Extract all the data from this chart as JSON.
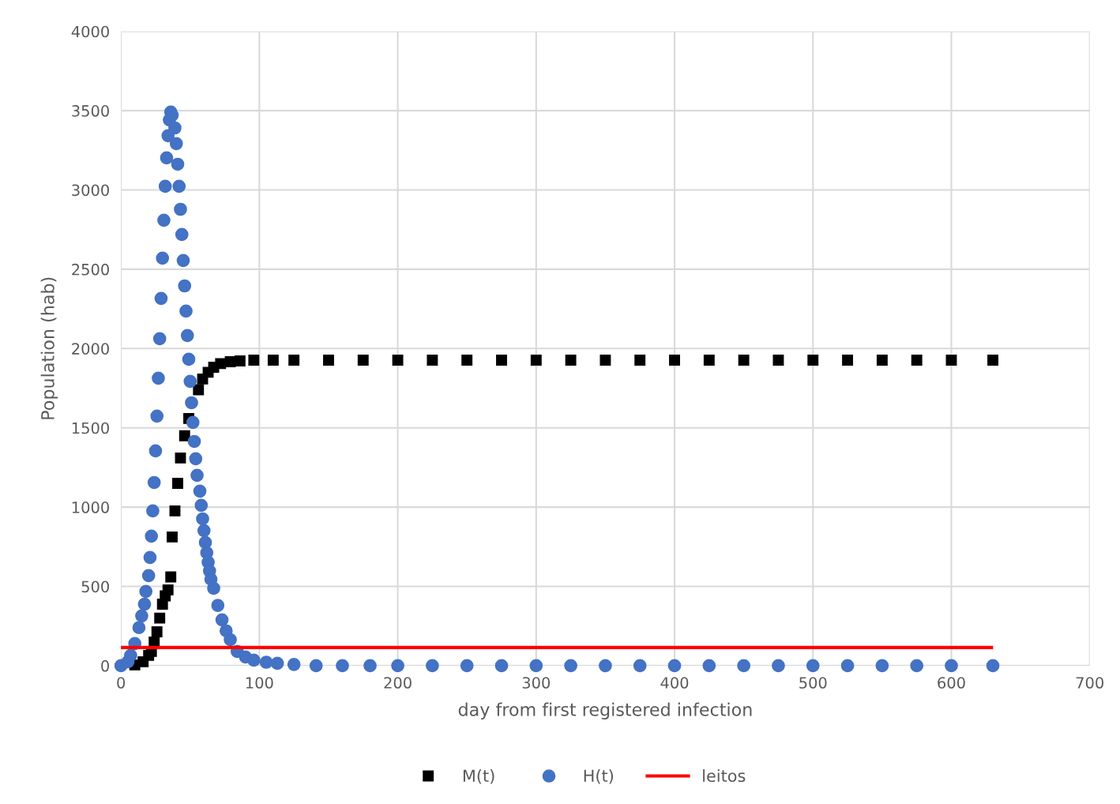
{
  "chart_data": {
    "type": "scatter",
    "xlabel": "day from first registered infection",
    "ylabel": "Population (hab)",
    "xlim": [
      0,
      700
    ],
    "xticks": [
      0,
      100,
      200,
      300,
      400,
      500,
      600,
      700
    ],
    "ylim": [
      0,
      4000
    ],
    "yticks": [
      0,
      500,
      1000,
      1500,
      2000,
      2500,
      3000,
      3500,
      4000
    ],
    "grid": true,
    "legend": "bottom",
    "series": [
      {
        "name": "M(t)",
        "color": "#000000",
        "marker": "square",
        "x": [
          10,
          16,
          20,
          22,
          24,
          26,
          28,
          30,
          32,
          34,
          36,
          37,
          39,
          41,
          43,
          46,
          49,
          53,
          56,
          59,
          63,
          67,
          72,
          79,
          86,
          96,
          110,
          125,
          150,
          175,
          200,
          225,
          250,
          275,
          300,
          325,
          350,
          375,
          400,
          425,
          450,
          475,
          500,
          525,
          550,
          575,
          600,
          630
        ],
        "values": [
          5,
          25,
          65,
          90,
          149,
          214,
          300,
          388,
          440,
          478,
          560,
          812,
          976,
          1150,
          1310,
          1450,
          1559,
          null,
          1740,
          1808,
          1850,
          1882,
          1905,
          1917,
          1922,
          1927,
          1927,
          1927,
          1927,
          1927,
          1927,
          1927,
          1927,
          1927,
          1927,
          1927,
          1927,
          1927,
          1927,
          1927,
          1927,
          1927,
          1927,
          1927,
          1927,
          1927,
          1927,
          1927
        ]
      },
      {
        "name": "H(t)",
        "color": "#4472c4",
        "marker": "circle",
        "x": [
          0,
          5,
          7,
          10,
          13,
          15,
          17,
          18,
          20,
          21,
          22,
          23,
          24,
          25,
          26,
          27,
          28,
          29,
          30,
          31,
          32,
          33,
          34,
          35,
          36,
          37,
          39,
          40,
          41,
          42,
          43,
          44,
          45,
          46,
          47,
          48,
          49,
          50,
          51,
          52,
          53,
          54,
          55,
          57,
          58,
          59,
          60,
          61,
          62,
          63,
          64,
          65,
          67,
          70,
          73,
          76,
          79,
          84,
          90,
          96,
          105,
          113,
          125,
          141,
          160,
          180,
          200,
          225,
          250,
          275,
          300,
          325,
          350,
          375,
          400,
          425,
          450,
          475,
          500,
          525,
          550,
          575,
          600,
          630
        ],
        "values": [
          0,
          25,
          65,
          140,
          240,
          314,
          388,
          468,
          568,
          682,
          817,
          976,
          1155,
          1355,
          1574,
          1813,
          2062,
          2316,
          2570,
          2809,
          3023,
          3202,
          3342,
          3441,
          3491,
          3471,
          3391,
          3292,
          3162,
          3023,
          2878,
          2719,
          2555,
          2395,
          2236,
          2082,
          1932,
          1793,
          1658,
          1534,
          1414,
          1305,
          1200,
          1101,
          1011,
          926,
          852,
          777,
          712,
          652,
          598,
          545,
          488,
          380,
          289,
          220,
          164,
          90,
          55,
          35,
          22,
          15,
          8,
          0,
          0,
          0,
          0,
          0,
          0,
          0,
          0,
          0,
          0,
          0,
          0,
          0,
          0,
          0,
          0,
          0,
          0,
          0,
          0,
          0
        ]
      },
      {
        "name": "leitos",
        "type": "line",
        "color": "#ff0000",
        "marker": "none",
        "x": [
          0,
          629
        ],
        "values": [
          115,
          115
        ]
      }
    ]
  }
}
